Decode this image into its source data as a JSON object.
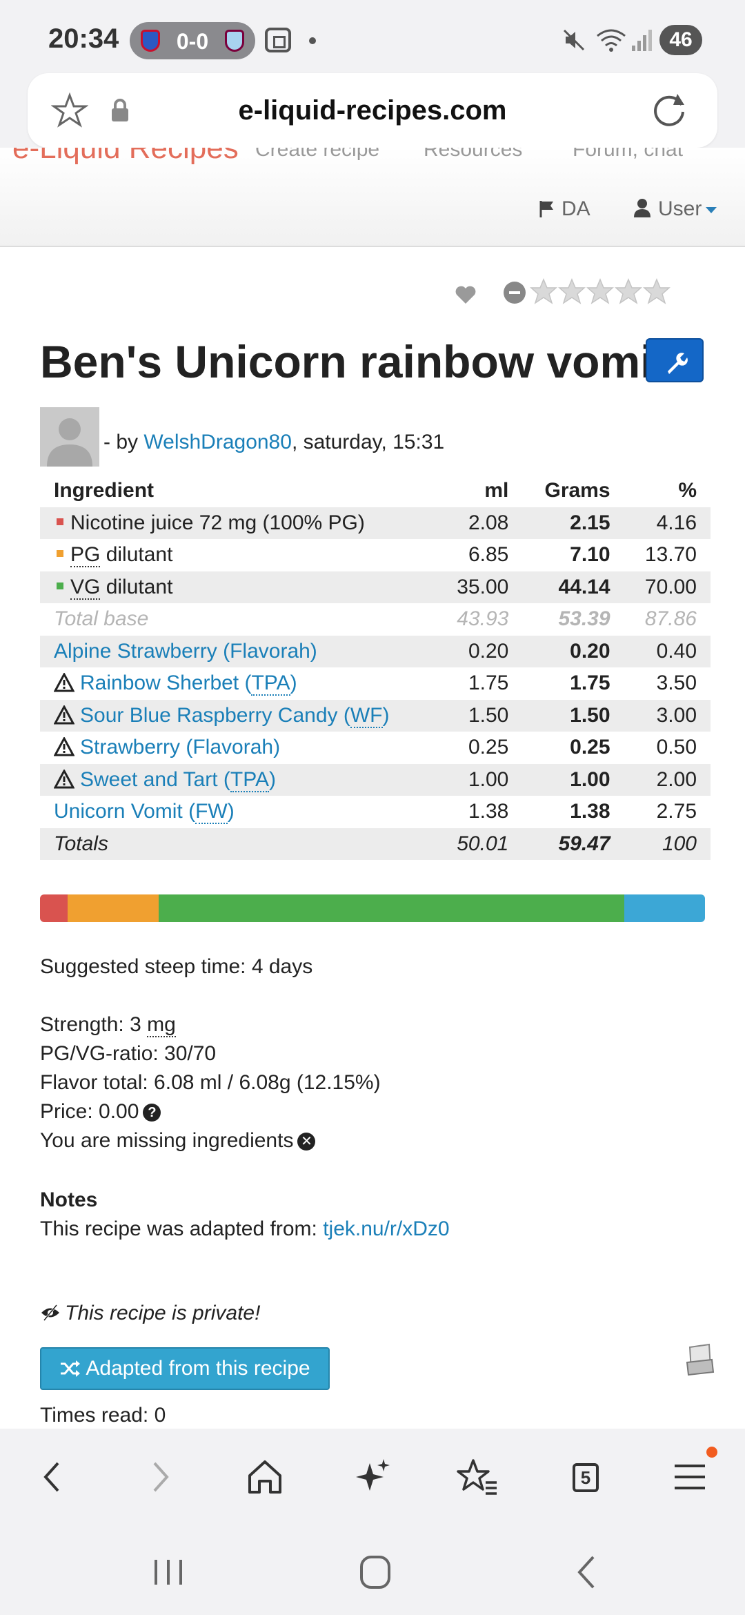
{
  "status_bar": {
    "time": "20:34",
    "score": "0-0",
    "battery": "46"
  },
  "browser": {
    "url": "e-liquid-recipes.com",
    "tab_count": "5"
  },
  "site_nav": {
    "logo_partial": "e-Liquid Recipes",
    "nav_partial_1": "Create recipe",
    "nav_partial_2": "Resources",
    "nav_partial_3": "Forum, chat",
    "lang": "DA",
    "user": "User"
  },
  "recipe": {
    "title": "Ben's Unicorn rainbow vomit",
    "by_prefix": "- by ",
    "author": "WelshDragon80",
    "date": ", saturday, 15:31"
  },
  "table": {
    "headers": [
      "Ingredient",
      "ml",
      "Grams",
      "%"
    ],
    "base_rows": [
      {
        "name": "Nicotine juice 72 mg (100% PG)",
        "ml": "2.08",
        "grams": "2.15",
        "pct": "4.16",
        "color": "#d9534f"
      },
      {
        "name_abbr": "PG",
        "name": " dilutant",
        "ml": "6.85",
        "grams": "7.10",
        "pct": "13.70",
        "color": "#f0a030"
      },
      {
        "name_abbr": "VG",
        "name": " dilutant",
        "ml": "35.00",
        "grams": "44.14",
        "pct": "70.00",
        "color": "#4cae4c"
      }
    ],
    "total_base": {
      "label": "Total base",
      "ml": "43.93",
      "grams": "53.39",
      "pct": "87.86"
    },
    "flavors": [
      {
        "name": "Alpine Strawberry (Flavorah)",
        "warn": false,
        "ml": "0.20",
        "grams": "0.20",
        "pct": "0.40"
      },
      {
        "name": "Rainbow Sherbet (",
        "abbr": "TPA",
        "suffix": ")",
        "warn": true,
        "ml": "1.75",
        "grams": "1.75",
        "pct": "3.50"
      },
      {
        "name": "Sour Blue Raspberry Candy (",
        "abbr": "WF",
        "suffix": ")",
        "warn": true,
        "ml": "1.50",
        "grams": "1.50",
        "pct": "3.00"
      },
      {
        "name": "Strawberry (Flavorah)",
        "warn": true,
        "ml": "0.25",
        "grams": "0.25",
        "pct": "0.50"
      },
      {
        "name": "Sweet and Tart (",
        "abbr": "TPA",
        "suffix": ")",
        "warn": true,
        "ml": "1.00",
        "grams": "1.00",
        "pct": "2.00"
      },
      {
        "name": "Unicorn Vomit (",
        "abbr": "FW",
        "suffix": ")",
        "warn": false,
        "ml": "1.38",
        "grams": "1.38",
        "pct": "2.75"
      }
    ],
    "totals": {
      "label": "Totals",
      "ml": "50.01",
      "grams": "59.47",
      "pct": "100"
    }
  },
  "ratio_bar": [
    {
      "pct": 4.16,
      "color": "#d9534f"
    },
    {
      "pct": 13.7,
      "color": "#f0a030"
    },
    {
      "pct": 70.0,
      "color": "#4cae4c"
    },
    {
      "pct": 12.14,
      "color": "#3ca7d6"
    }
  ],
  "info": {
    "steep": "Suggested steep time: 4 days",
    "strength_prefix": "Strength: 3 ",
    "strength_unit": "mg",
    "ratio": "PG/VG-ratio: 30/70",
    "flavor_total": "Flavor total: 6.08 ml / 6.08g (12.15%)",
    "price": "Price: 0.00",
    "missing": "You are missing ingredients",
    "notes_heading": "Notes",
    "notes_prefix": "This recipe was adapted from: ",
    "notes_link": "tjek.nu/r/xDz0"
  },
  "footer": {
    "private": "This recipe is private!",
    "adapt_button": "Adapted from this recipe",
    "times_read": "Times read: 0"
  },
  "colors": {
    "link": "#1a7fb8",
    "edit_button": "#1467c7",
    "adapt_button": "#33a4cf"
  }
}
